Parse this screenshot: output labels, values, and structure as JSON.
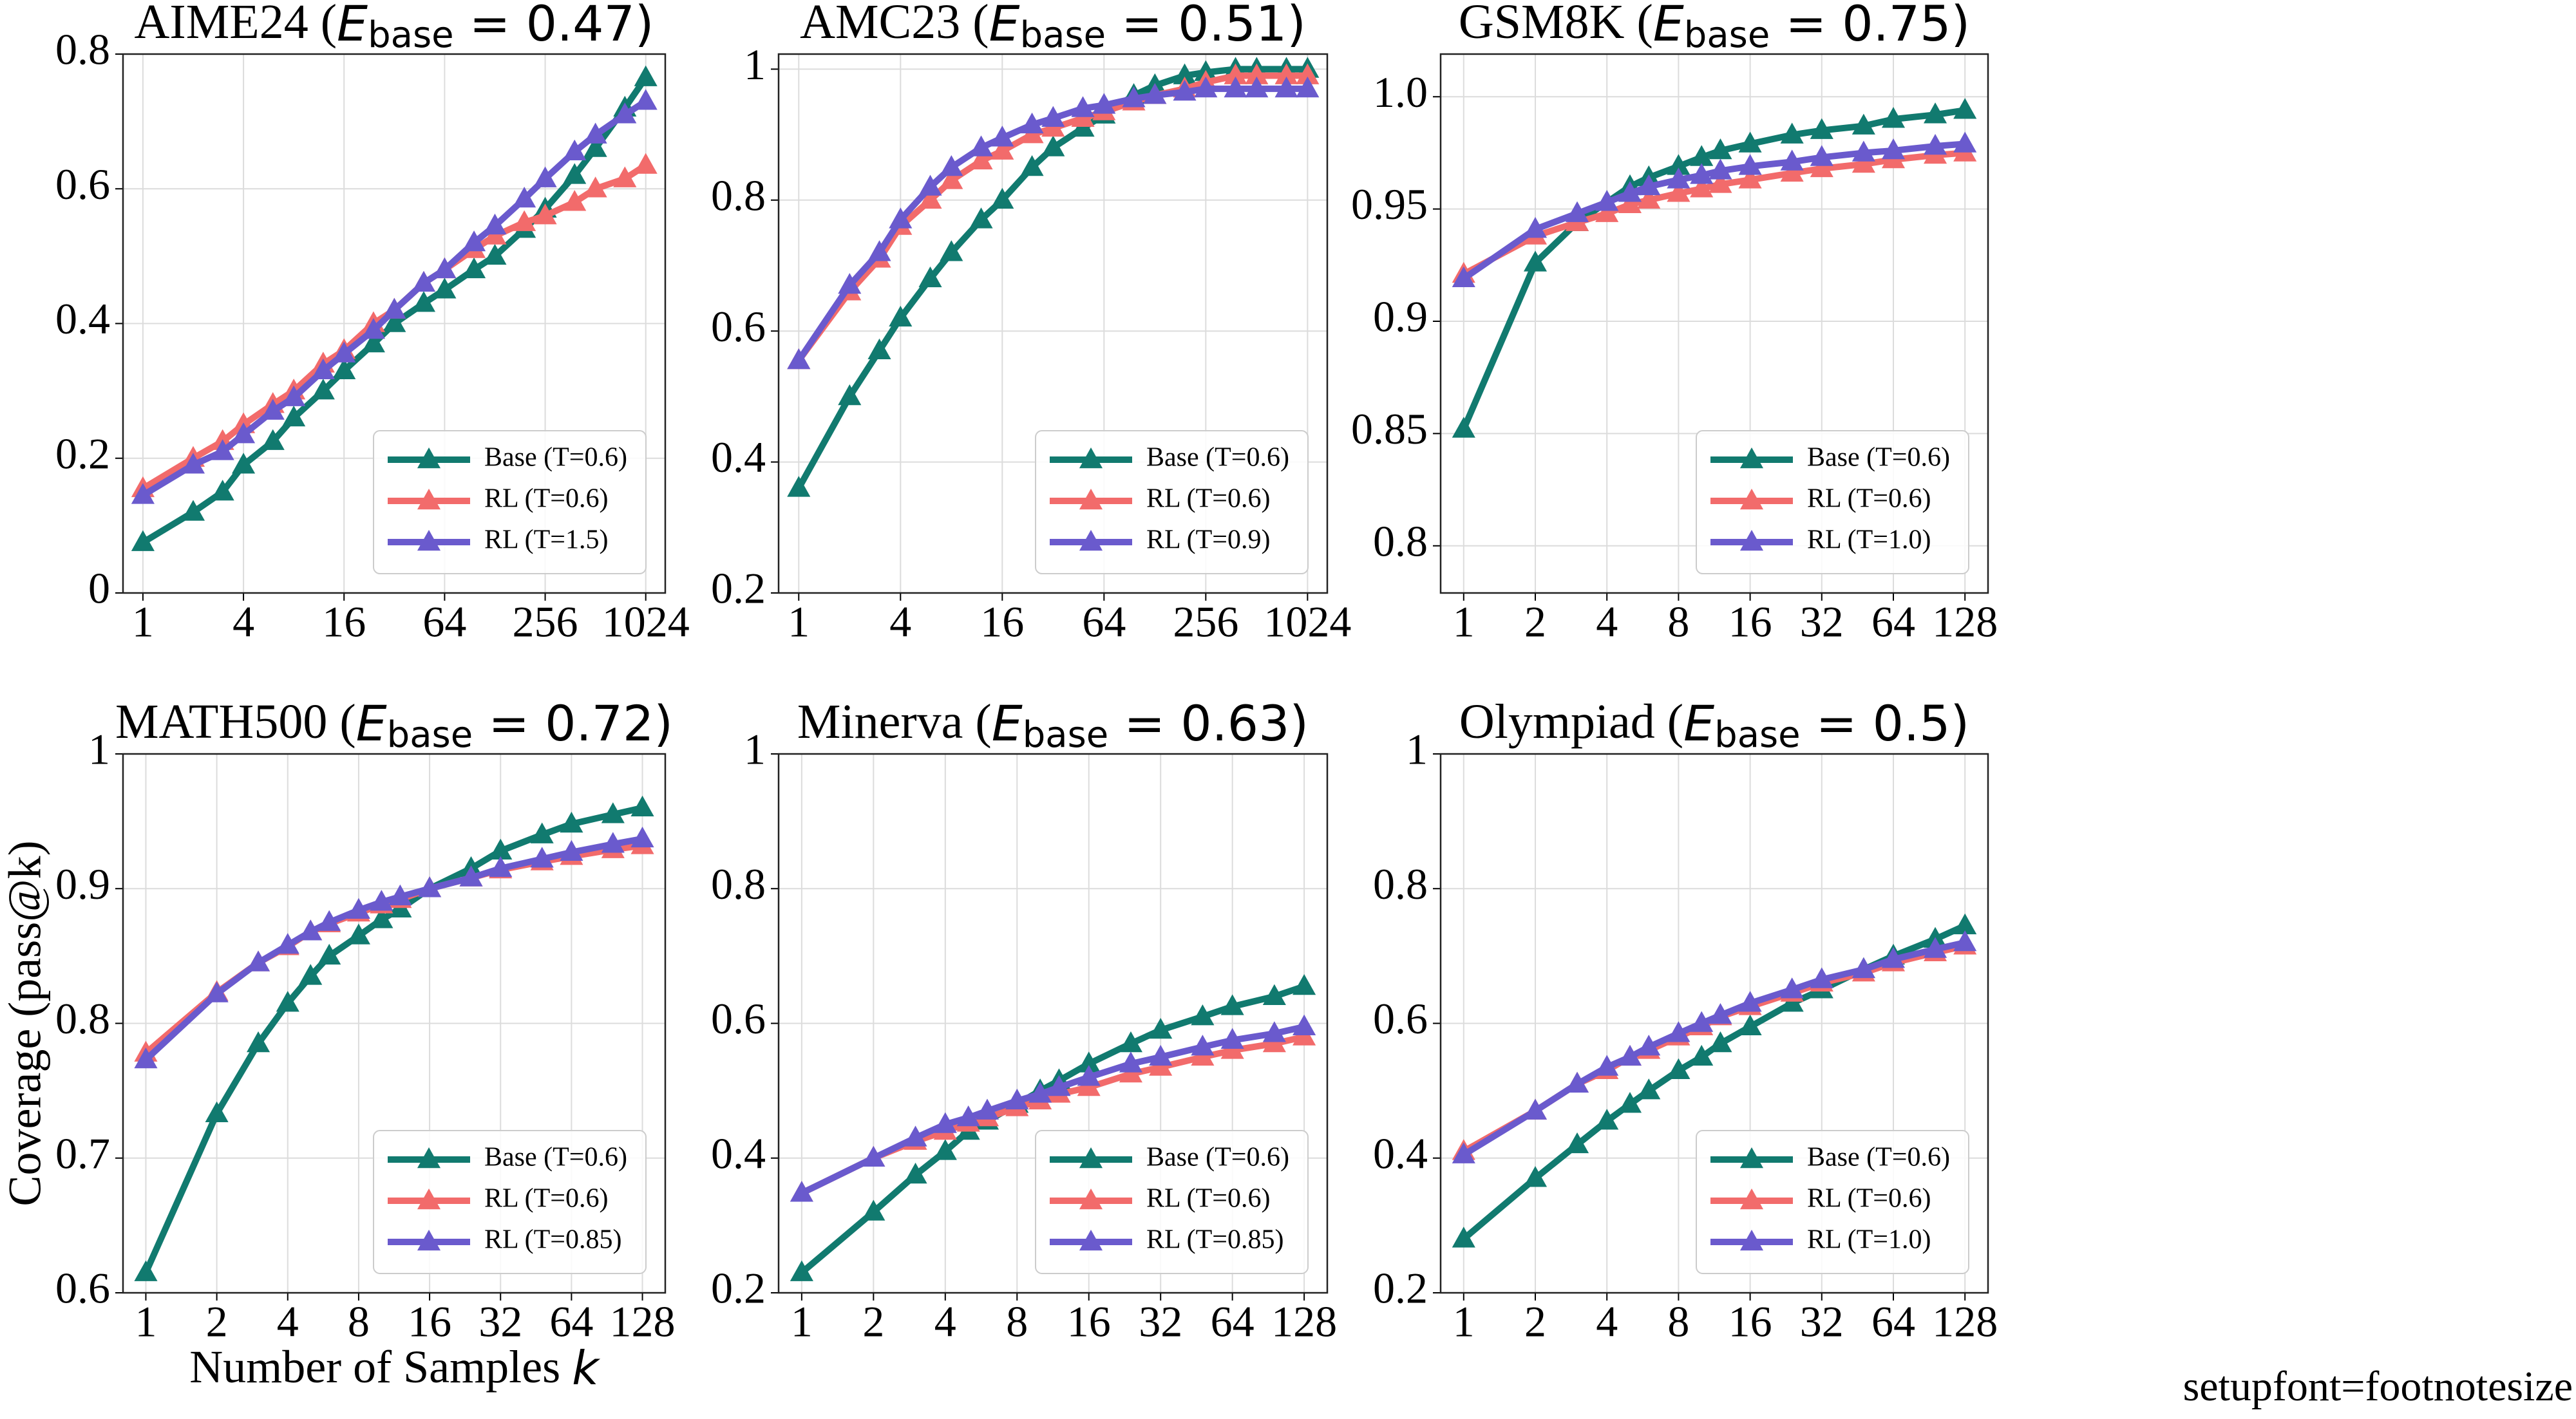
{
  "chart_data": [
    {
      "type": "line",
      "title": {
        "prefix": "AIME24 (",
        "symbol": "E",
        "subscript": "base",
        "suffix": " = 0.47)"
      },
      "x": [
        1,
        2,
        3,
        4,
        6,
        8,
        12,
        16,
        24,
        32,
        48,
        64,
        96,
        128,
        192,
        256,
        384,
        512,
        768,
        1024
      ],
      "xscale": "log",
      "xlim": [
        0.76,
        1340
      ],
      "xticks": [
        1,
        4,
        16,
        64,
        256,
        1024
      ],
      "ylim": [
        0,
        0.8
      ],
      "yticks": [
        0,
        0.2,
        0.4,
        0.6,
        0.8
      ],
      "grid": true,
      "legend": "lower right",
      "series": [
        {
          "name": "Base (T=0.6)",
          "color": "#117a6f",
          "values": [
            0.075,
            0.12,
            0.15,
            0.19,
            0.225,
            0.26,
            0.3,
            0.33,
            0.37,
            0.4,
            0.43,
            0.45,
            0.48,
            0.5,
            0.54,
            0.57,
            0.62,
            0.66,
            0.72,
            0.765
          ]
        },
        {
          "name": "RL (T=0.6)",
          "color": "#f26b6b",
          "values": [
            0.155,
            0.2,
            0.225,
            0.25,
            0.28,
            0.3,
            0.34,
            0.36,
            0.4,
            0.42,
            0.46,
            0.48,
            0.51,
            0.53,
            0.55,
            0.56,
            0.58,
            0.6,
            0.615,
            0.635
          ]
        },
        {
          "name": "RL (T=1.5)",
          "color": "#6a5acd",
          "values": [
            0.145,
            0.19,
            0.21,
            0.235,
            0.27,
            0.29,
            0.33,
            0.355,
            0.39,
            0.42,
            0.46,
            0.48,
            0.52,
            0.545,
            0.585,
            0.615,
            0.655,
            0.68,
            0.71,
            0.73
          ]
        }
      ]
    },
    {
      "type": "line",
      "title": {
        "prefix": "AMC23 (",
        "symbol": "E",
        "subscript": "base",
        "suffix": " = 0.51)"
      },
      "x": [
        1,
        2,
        3,
        4,
        6,
        8,
        12,
        16,
        24,
        32,
        48,
        64,
        96,
        128,
        192,
        256,
        384,
        512,
        768,
        1024
      ],
      "xscale": "log",
      "xlim": [
        0.76,
        1340
      ],
      "xticks": [
        1,
        4,
        16,
        64,
        256,
        1024
      ],
      "ylim": [
        0.2,
        1.023
      ],
      "yticks": [
        0.2,
        0.4,
        0.6,
        0.8,
        1
      ],
      "grid": true,
      "legend": "lower right",
      "series": [
        {
          "name": "Base (T=0.6)",
          "color": "#117a6f",
          "values": [
            0.36,
            0.5,
            0.57,
            0.62,
            0.68,
            0.72,
            0.77,
            0.8,
            0.85,
            0.88,
            0.91,
            0.93,
            0.96,
            0.975,
            0.99,
            0.995,
            1,
            1,
            1,
            1
          ]
        },
        {
          "name": "RL (T=0.6)",
          "color": "#f26b6b",
          "values": [
            0.555,
            0.66,
            0.71,
            0.76,
            0.8,
            0.83,
            0.86,
            0.875,
            0.9,
            0.91,
            0.925,
            0.935,
            0.95,
            0.96,
            0.97,
            0.98,
            0.99,
            0.99,
            0.99,
            0.99
          ]
        },
        {
          "name": "RL (T=0.9)",
          "color": "#6a5acd",
          "values": [
            0.555,
            0.67,
            0.72,
            0.77,
            0.82,
            0.85,
            0.88,
            0.895,
            0.915,
            0.925,
            0.94,
            0.945,
            0.955,
            0.96,
            0.965,
            0.97,
            0.97,
            0.97,
            0.97,
            0.97
          ]
        }
      ]
    },
    {
      "type": "line",
      "title": {
        "prefix": "GSM8K (",
        "symbol": "E",
        "subscript": "base",
        "suffix": " = 0.75)"
      },
      "x": [
        1,
        2,
        3,
        4,
        5,
        6,
        8,
        10,
        12,
        16,
        24,
        32,
        48,
        64,
        96,
        128
      ],
      "xscale": "log",
      "xlim": [
        0.8,
        160
      ],
      "xticks": [
        1,
        2,
        4,
        8,
        16,
        32,
        64,
        128
      ],
      "ylim": [
        0.779,
        1.019
      ],
      "yticks": [
        0.8,
        0.85,
        0.9,
        0.95,
        {
          "value": 1,
          "label": "1.0"
        }
      ],
      "grid": true,
      "legend": "lower right",
      "series": [
        {
          "name": "Base (T=0.6)",
          "color": "#117a6f",
          "values": [
            0.852,
            0.926,
            0.944,
            0.953,
            0.96,
            0.964,
            0.969,
            0.973,
            0.976,
            0.979,
            0.983,
            0.985,
            0.987,
            0.99,
            0.992,
            0.994
          ]
        },
        {
          "name": "RL (T=0.6)",
          "color": "#f26b6b",
          "values": [
            0.921,
            0.938,
            0.944,
            0.948,
            0.952,
            0.954,
            0.957,
            0.959,
            0.961,
            0.963,
            0.966,
            0.968,
            0.97,
            0.972,
            0.974,
            0.975
          ]
        },
        {
          "name": "RL (T=1.0)",
          "color": "#6a5acd",
          "values": [
            0.919,
            0.941,
            0.948,
            0.953,
            0.957,
            0.96,
            0.963,
            0.965,
            0.967,
            0.969,
            0.971,
            0.973,
            0.975,
            0.976,
            0.978,
            0.979
          ]
        }
      ]
    },
    {
      "type": "line",
      "title": {
        "prefix": "MATH500 (",
        "symbol": "E",
        "subscript": "base",
        "suffix": " = 0.72)"
      },
      "ylabel": "Coverage (pass@k)",
      "xlabel": {
        "text": "Number of Samples ",
        "symbol": "k"
      },
      "x": [
        1,
        2,
        3,
        4,
        5,
        6,
        8,
        10,
        12,
        16,
        24,
        32,
        48,
        64,
        96,
        128
      ],
      "xscale": "log",
      "xlim": [
        0.8,
        160
      ],
      "xticks": [
        1,
        2,
        4,
        8,
        16,
        32,
        64,
        128
      ],
      "ylim": [
        0.6,
        1
      ],
      "yticks": [
        0.6,
        0.7,
        0.8,
        0.9,
        1
      ],
      "grid": true,
      "legend": "lower right",
      "series": [
        {
          "name": "Base (T=0.6)",
          "color": "#117a6f",
          "values": [
            0.615,
            0.733,
            0.785,
            0.815,
            0.835,
            0.85,
            0.865,
            0.877,
            0.885,
            0.9,
            0.915,
            0.928,
            0.94,
            0.948,
            0.955,
            0.96
          ]
        },
        {
          "name": "RL (T=0.6)",
          "color": "#f26b6b",
          "values": [
            0.778,
            0.823,
            0.845,
            0.857,
            0.868,
            0.874,
            0.882,
            0.888,
            0.892,
            0.9,
            0.908,
            0.914,
            0.92,
            0.924,
            0.929,
            0.932
          ]
        },
        {
          "name": "RL (T=0.85)",
          "color": "#6a5acd",
          "values": [
            0.773,
            0.822,
            0.845,
            0.858,
            0.868,
            0.875,
            0.884,
            0.89,
            0.894,
            0.9,
            0.908,
            0.915,
            0.922,
            0.927,
            0.933,
            0.937
          ]
        }
      ]
    },
    {
      "type": "line",
      "title": {
        "prefix": "Minerva (",
        "symbol": "E",
        "subscript": "base",
        "suffix": " = 0.63)"
      },
      "x": [
        1,
        2,
        3,
        4,
        5,
        6,
        8,
        10,
        12,
        16,
        24,
        32,
        48,
        64,
        96,
        128
      ],
      "xscale": "log",
      "xlim": [
        0.8,
        160
      ],
      "xticks": [
        1,
        2,
        4,
        8,
        16,
        32,
        64,
        128
      ],
      "ylim": [
        0.2,
        1
      ],
      "yticks": [
        0.2,
        0.4,
        0.6,
        0.8,
        1
      ],
      "grid": true,
      "legend": "lower right",
      "series": [
        {
          "name": "Base (T=0.6)",
          "color": "#117a6f",
          "values": [
            0.23,
            0.32,
            0.375,
            0.41,
            0.44,
            0.455,
            0.48,
            0.5,
            0.515,
            0.54,
            0.57,
            0.59,
            0.61,
            0.625,
            0.64,
            0.655
          ]
        },
        {
          "name": "RL (T=0.6)",
          "color": "#f26b6b",
          "values": [
            0.348,
            0.4,
            0.425,
            0.44,
            0.452,
            0.46,
            0.475,
            0.485,
            0.495,
            0.505,
            0.525,
            0.535,
            0.55,
            0.56,
            0.57,
            0.58
          ]
        },
        {
          "name": "RL (T=0.85)",
          "color": "#6a5acd",
          "values": [
            0.348,
            0.4,
            0.43,
            0.45,
            0.46,
            0.47,
            0.485,
            0.495,
            0.505,
            0.52,
            0.54,
            0.55,
            0.565,
            0.575,
            0.585,
            0.595
          ]
        }
      ]
    },
    {
      "type": "line",
      "title": {
        "prefix": "Olympiad (",
        "symbol": "E",
        "subscript": "base",
        "suffix": " = 0.5)"
      },
      "x": [
        1,
        2,
        3,
        4,
        5,
        6,
        8,
        10,
        12,
        16,
        24,
        32,
        48,
        64,
        96,
        128
      ],
      "xscale": "log",
      "xlim": [
        0.8,
        160
      ],
      "xticks": [
        1,
        2,
        4,
        8,
        16,
        32,
        64,
        128
      ],
      "ylim": [
        0.2,
        1
      ],
      "yticks": [
        0.2,
        0.4,
        0.6,
        0.8,
        1
      ],
      "grid": true,
      "legend": "lower right",
      "series": [
        {
          "name": "Base (T=0.6)",
          "color": "#117a6f",
          "values": [
            0.28,
            0.37,
            0.42,
            0.455,
            0.48,
            0.5,
            0.53,
            0.55,
            0.57,
            0.595,
            0.63,
            0.65,
            0.68,
            0.7,
            0.725,
            0.745
          ]
        },
        {
          "name": "RL (T=0.6)",
          "color": "#f26b6b",
          "values": [
            0.41,
            0.47,
            0.51,
            0.53,
            0.55,
            0.56,
            0.58,
            0.595,
            0.61,
            0.625,
            0.645,
            0.66,
            0.675,
            0.69,
            0.705,
            0.715
          ]
        },
        {
          "name": "RL (T=1.0)",
          "color": "#6a5acd",
          "values": [
            0.405,
            0.47,
            0.51,
            0.535,
            0.55,
            0.565,
            0.585,
            0.6,
            0.612,
            0.63,
            0.65,
            0.665,
            0.68,
            0.695,
            0.71,
            0.72
          ]
        }
      ]
    }
  ],
  "footnote": "setupfont=footnotesize"
}
